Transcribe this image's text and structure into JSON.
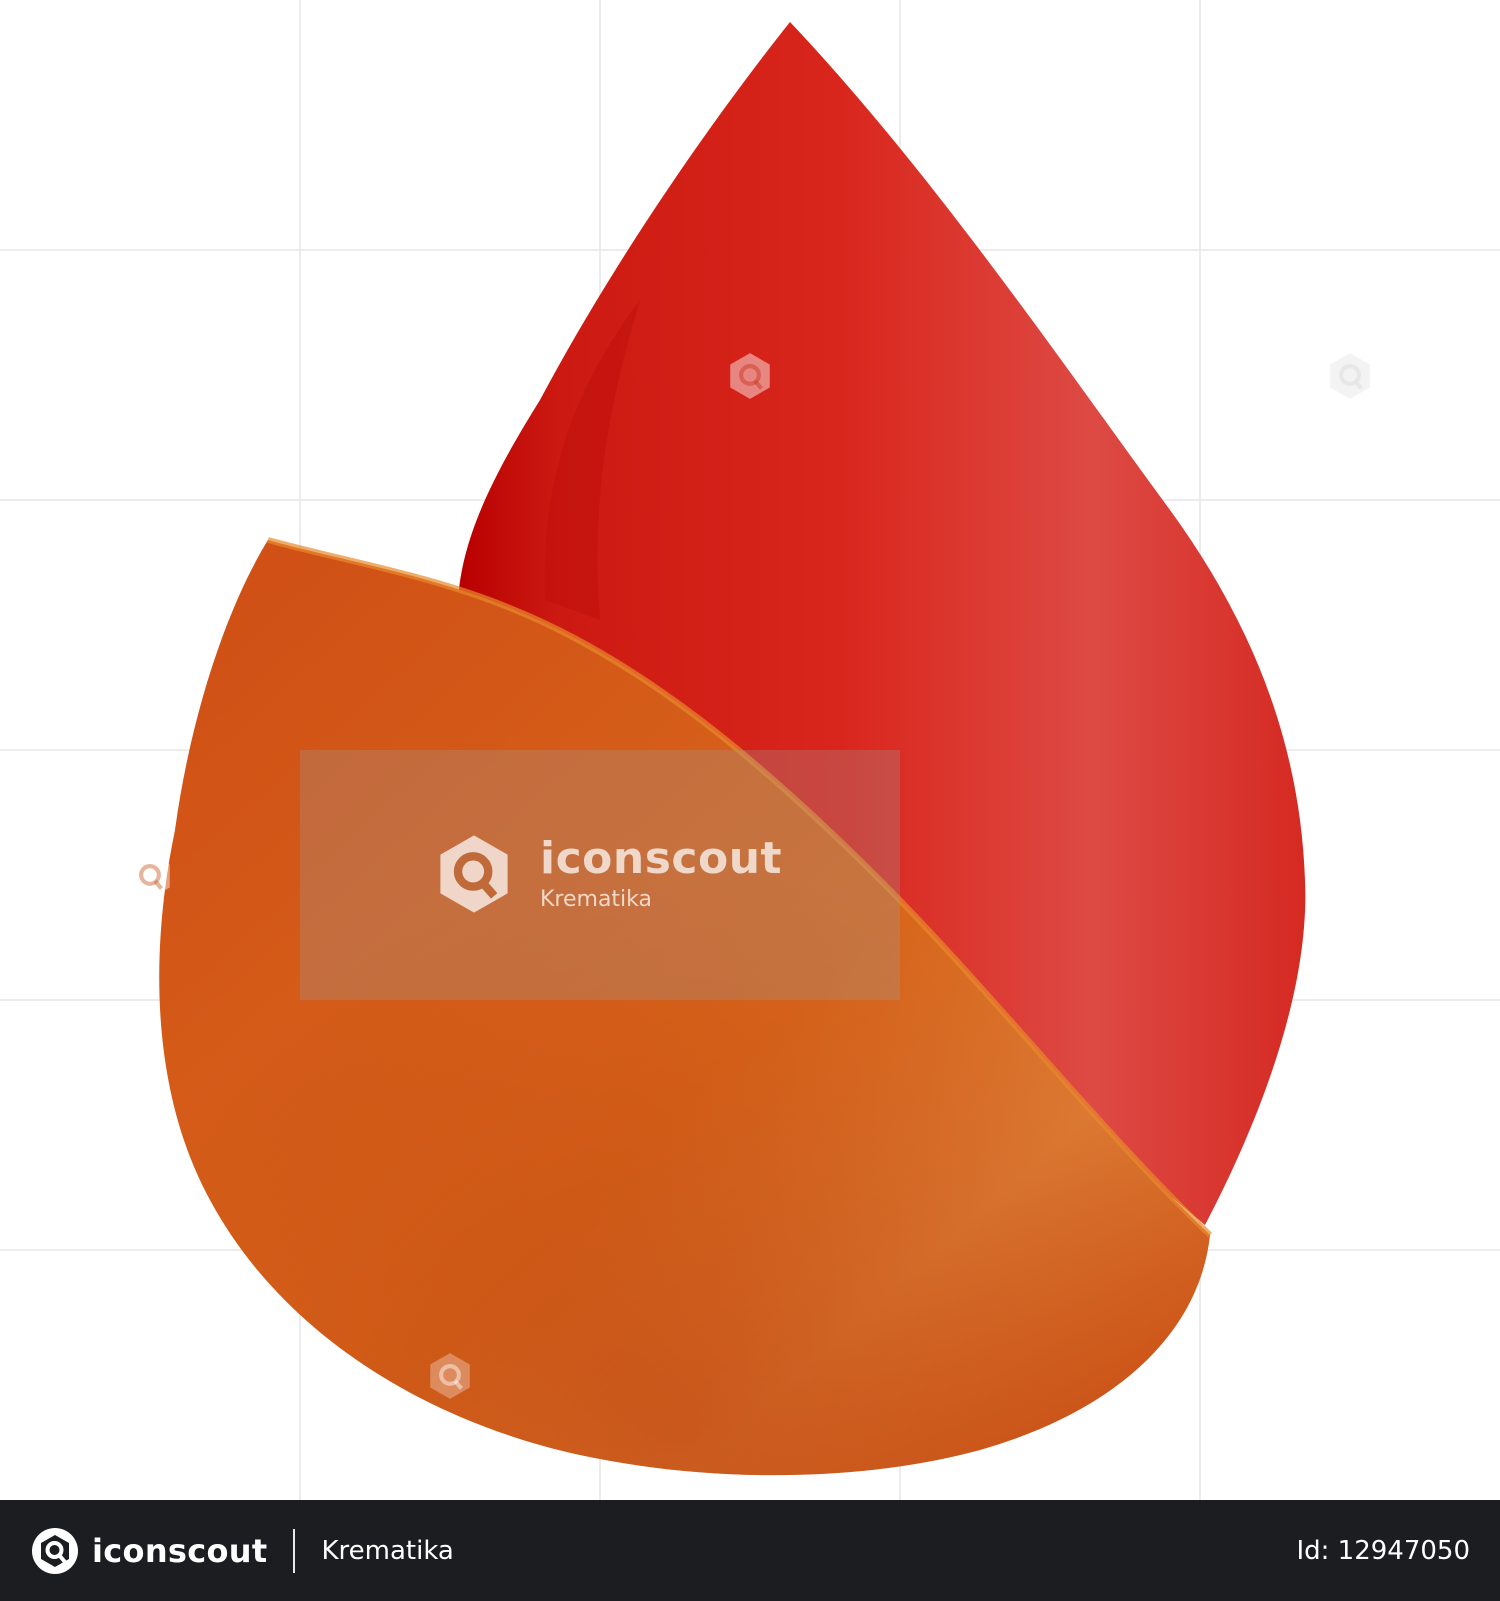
{
  "watermark": {
    "brand": "iconscout",
    "author": "Krematika",
    "logo_icon": "iconscout-logo-icon"
  },
  "footer": {
    "brand": "iconscout",
    "author": "Krematika",
    "id_text": "Id: 12947050",
    "background": "#1b1d21",
    "logo_icon": "iconscout-logo-icon"
  },
  "illustration": {
    "subject": "flame-icon",
    "colors": {
      "back_flame": "#d9231b",
      "back_flame_highlight": "#e0514a",
      "front_flame": "#d8621a",
      "front_flame_highlight": "#e0843a"
    }
  }
}
